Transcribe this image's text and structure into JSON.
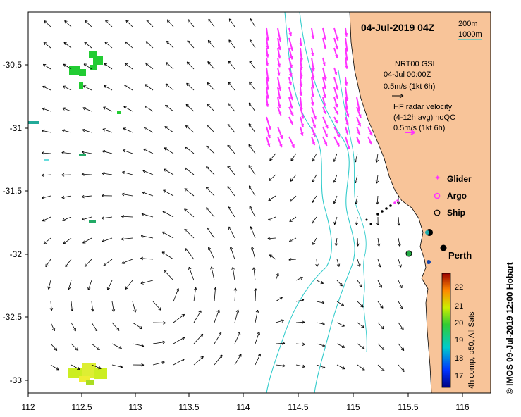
{
  "map": {
    "title": "04-Jul-2019 04Z",
    "isobaths": [
      "200m",
      "1000m"
    ],
    "isobath_color": "#33cccc",
    "land_color": "#f8c499",
    "x_ticks": [
      "112",
      "112.5",
      "113",
      "113.5",
      "114",
      "114.5",
      "115",
      "115.5",
      "116"
    ],
    "y_ticks": [
      "-30.5",
      "-31",
      "-31.5",
      "-32",
      "-32.5",
      "-33"
    ],
    "city": "Perth",
    "credit": "© IMOS 09-Jul-2019 12:00 Hobart"
  },
  "legend": {
    "nrt_title": "NRT00 GSL",
    "nrt_time": "04-Jul 00:00Z",
    "nrt_scale": "0.5m/s (1kt 6h)",
    "hf_title": "HF radar velocity",
    "hf_sub": "(4-12h avg) noQC",
    "hf_scale": "0.5m/s (1kt 6h)",
    "hf_color": "#ff33ff",
    "glider": "Glider",
    "argo": "Argo",
    "ship": "Ship"
  },
  "colorbar": {
    "label": "4h comp, p50, All Sats",
    "ticks": [
      "22",
      "21",
      "20",
      "19",
      "18",
      "17"
    ]
  }
}
